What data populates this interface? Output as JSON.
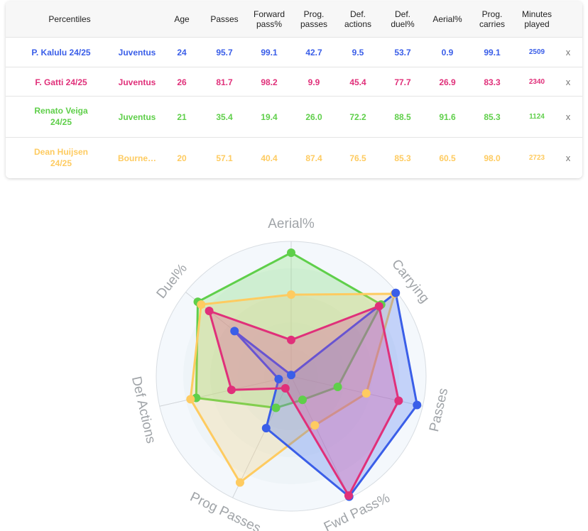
{
  "table": {
    "headers": {
      "name": "Percentiles",
      "age": "Age",
      "passes": "Passes",
      "fwd_1": "Forward",
      "fwd_2": "pass%",
      "prog_1": "Prog.",
      "prog_2": "passes",
      "def_1": "Def.",
      "def_2": "actions",
      "duel_1": "Def.",
      "duel_2": "duel%",
      "aerial": "Aerial%",
      "carry_1": "Prog.",
      "carry_2": "carries",
      "min_1": "Minutes",
      "min_2": "played"
    },
    "remove_label": "x",
    "rows": [
      {
        "name_1": "P. Kalulu 24/25",
        "name_2": "",
        "team": "Juventus",
        "age": "24",
        "passes": "95.7",
        "forward_pass": "99.1",
        "prog_passes": "42.7",
        "def_actions": "9.5",
        "def_duel": "53.7",
        "aerial": "0.9",
        "prog_carries": "99.1",
        "minutes": "2509",
        "color": "#3a5ee8"
      },
      {
        "name_1": "F. Gatti 24/25",
        "name_2": "",
        "team": "Juventus",
        "age": "26",
        "passes": "81.7",
        "forward_pass": "98.2",
        "prog_passes": "9.9",
        "def_actions": "45.4",
        "def_duel": "77.7",
        "aerial": "26.9",
        "prog_carries": "83.3",
        "minutes": "2340",
        "color": "#e0307a"
      },
      {
        "name_1": "Renato Veiga",
        "name_2": "24/25",
        "team": "Juventus",
        "age": "21",
        "passes": "35.4",
        "forward_pass": "19.4",
        "prog_passes": "26.0",
        "def_actions": "72.2",
        "def_duel": "88.5",
        "aerial": "91.6",
        "prog_carries": "85.3",
        "minutes": "1124",
        "color": "#5fcf4a"
      },
      {
        "name_1": "Dean Huijsen",
        "name_2": "24/25",
        "team": "Bourne…",
        "age": "20",
        "passes": "57.1",
        "forward_pass": "40.4",
        "prog_passes": "87.4",
        "def_actions": "76.5",
        "def_duel": "85.3",
        "aerial": "60.5",
        "prog_carries": "98.0",
        "minutes": "2723",
        "color": "#fecb60"
      }
    ]
  },
  "chart_data": {
    "type": "radar",
    "axes": [
      "Aerial%",
      "Carrying",
      "Passes",
      "Fwd Pass%",
      "Prog Passes",
      "Def Actions",
      "Duel%"
    ],
    "range": [
      0,
      100
    ],
    "grid": true,
    "series": [
      {
        "name": "Renato Veiga 24/25",
        "values": [
          91.6,
          85.3,
          35.4,
          19.4,
          26.0,
          72.2,
          88.5
        ],
        "color": "#5fcf4a",
        "fill": "rgba(110,220,90,0.25)"
      },
      {
        "name": "Dean Huijsen 24/25",
        "values": [
          60.5,
          98.0,
          57.1,
          40.4,
          87.4,
          76.5,
          85.3
        ],
        "color": "#fecb60",
        "fill": "rgba(254,205,96,0.22)"
      },
      {
        "name": "P. Kalulu 24/25",
        "values": [
          0.9,
          99.1,
          95.7,
          99.1,
          42.7,
          9.5,
          53.7
        ],
        "color": "#3a5ee8",
        "fill": "rgba(70,110,240,0.28)"
      },
      {
        "name": "F. Gatti 24/25",
        "values": [
          26.9,
          83.3,
          81.7,
          98.2,
          9.9,
          45.4,
          77.7
        ],
        "color": "#e0307a",
        "fill": "rgba(225,60,150,0.28)"
      }
    ]
  }
}
